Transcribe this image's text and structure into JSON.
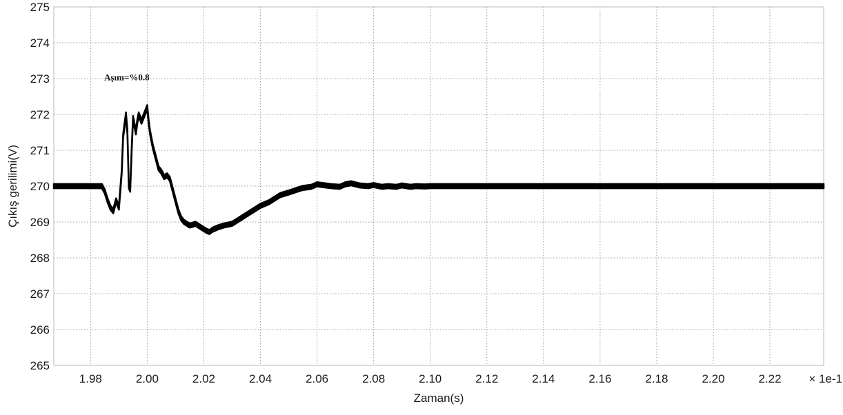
{
  "chart_data": {
    "type": "line",
    "title": "",
    "xlabel": "Zaman(s)",
    "ylabel": "Çıkış gerilimi(V)",
    "x_scale_label": "× 1e-1",
    "xlim": [
      1.967,
      2.239
    ],
    "ylim": [
      265,
      275
    ],
    "xticks": [
      "1.98",
      "2.00",
      "2.02",
      "2.04",
      "2.06",
      "2.08",
      "2.10",
      "2.12",
      "2.14",
      "2.16",
      "2.18",
      "2.20",
      "2.22"
    ],
    "xtick_values": [
      1.98,
      2.0,
      2.02,
      2.04,
      2.06,
      2.08,
      2.1,
      2.12,
      2.14,
      2.16,
      2.18,
      2.2,
      2.22
    ],
    "yticks": [
      "265",
      "266",
      "267",
      "268",
      "269",
      "270",
      "271",
      "272",
      "273",
      "274",
      "275"
    ],
    "ytick_values": [
      265,
      266,
      267,
      268,
      269,
      270,
      271,
      272,
      273,
      274,
      275
    ],
    "grid": true,
    "annotation": {
      "text": "Aşım=%0.8",
      "x": 1.9848,
      "y": 272.95
    },
    "series": [
      {
        "color": "#000000",
        "ripple_band": 0.12,
        "x": [
          1.967,
          1.984,
          1.985,
          1.986,
          1.987,
          1.988,
          1.989,
          1.99,
          1.991,
          1.9915,
          1.9925,
          1.993,
          1.9935,
          1.994,
          1.9945,
          1.995,
          1.9955,
          1.996,
          1.9965,
          1.997,
          1.998,
          1.999,
          2.0,
          2.0005,
          2.001,
          2.002,
          2.003,
          2.004,
          2.005,
          2.006,
          2.007,
          2.008,
          2.009,
          2.01,
          2.011,
          2.012,
          2.013,
          2.014,
          2.015,
          2.016,
          2.017,
          2.018,
          2.019,
          2.02,
          2.021,
          2.022,
          2.023,
          2.025,
          2.027,
          2.03,
          2.032,
          2.035,
          2.038,
          2.04,
          2.043,
          2.045,
          2.047,
          2.05,
          2.053,
          2.055,
          2.058,
          2.06,
          2.063,
          2.065,
          2.068,
          2.07,
          2.072,
          2.075,
          2.078,
          2.08,
          2.083,
          2.085,
          2.088,
          2.09,
          2.093,
          2.095,
          2.098,
          2.1,
          2.105,
          2.11,
          2.115,
          2.12,
          2.125,
          2.13,
          2.135,
          2.14,
          2.145,
          2.15,
          2.155,
          2.16,
          2.165,
          2.17,
          2.175,
          2.18,
          2.185,
          2.19,
          2.195,
          2.2,
          2.205,
          2.21,
          2.215,
          2.22,
          2.225,
          2.23,
          2.235,
          2.239
        ],
        "y": [
          270.0,
          270.0,
          269.85,
          269.6,
          269.4,
          269.3,
          269.6,
          269.4,
          270.4,
          271.4,
          272.0,
          271.5,
          270.0,
          269.9,
          271.0,
          271.9,
          271.7,
          271.5,
          271.8,
          272.0,
          271.8,
          272.0,
          272.2,
          271.8,
          271.5,
          271.1,
          270.8,
          270.5,
          270.4,
          270.25,
          270.3,
          270.2,
          269.9,
          269.6,
          269.3,
          269.1,
          269.0,
          268.95,
          268.9,
          268.92,
          268.95,
          268.9,
          268.85,
          268.8,
          268.75,
          268.72,
          268.78,
          268.85,
          268.9,
          268.95,
          269.05,
          269.2,
          269.35,
          269.45,
          269.55,
          269.65,
          269.75,
          269.82,
          269.9,
          269.95,
          269.98,
          270.05,
          270.02,
          270.0,
          269.98,
          270.05,
          270.08,
          270.02,
          270.0,
          270.03,
          269.98,
          270.0,
          269.98,
          270.02,
          269.98,
          270.0,
          269.99,
          270.0,
          270.0,
          270.0,
          270.0,
          270.0,
          270.0,
          270.0,
          270.0,
          270.0,
          270.0,
          270.0,
          270.0,
          270.0,
          270.0,
          270.0,
          270.0,
          270.0,
          270.0,
          270.0,
          270.0,
          270.0,
          270.0,
          270.0,
          270.0,
          270.0,
          270.0,
          270.0,
          270.0,
          270.0
        ]
      }
    ]
  }
}
